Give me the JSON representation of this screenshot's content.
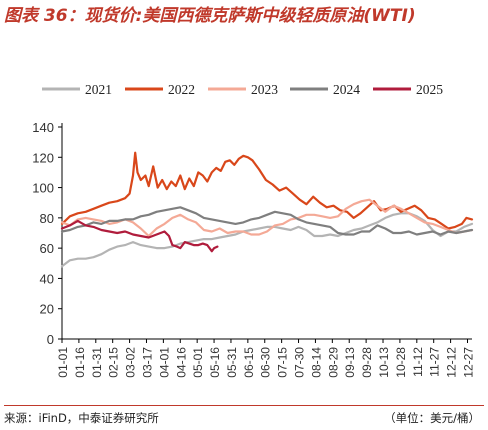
{
  "title_prefix": "图表 36：",
  "title_main": "现货价:美国西德克萨斯中级轻质原油(WTI)",
  "source": "来源：iFinD，中泰证券研究所",
  "unit": "（单位：美元/桶）",
  "chart_data": {
    "type": "line",
    "title": "",
    "xlabel": "",
    "ylabel": "",
    "ylim": [
      0,
      140
    ],
    "yticks": [
      0,
      20,
      40,
      60,
      80,
      100,
      120,
      140
    ],
    "grid": false,
    "legend_position": "top",
    "xticks": [
      "01-01",
      "01-16",
      "01-31",
      "02-15",
      "03-02",
      "03-17",
      "04-01",
      "04-16",
      "05-01",
      "05-16",
      "05-31",
      "06-15",
      "06-30",
      "07-15",
      "07-30",
      "08-14",
      "08-29",
      "09-13",
      "09-28",
      "10-13",
      "10-28",
      "11-12",
      "11-27",
      "12-12",
      "12-27"
    ],
    "x_days": [
      1,
      16,
      31,
      46,
      61,
      76,
      91,
      106,
      121,
      136,
      151,
      166,
      181,
      196,
      211,
      226,
      241,
      256,
      271,
      286,
      301,
      316,
      331,
      346,
      361
    ],
    "series": [
      {
        "name": "2021",
        "color": "#b4b4b4",
        "x": [
          1,
          8,
          15,
          22,
          29,
          36,
          43,
          50,
          57,
          64,
          71,
          78,
          85,
          92,
          99,
          106,
          113,
          120,
          127,
          134,
          141,
          148,
          155,
          162,
          169,
          176,
          183,
          190,
          197,
          204,
          211,
          218,
          225,
          232,
          239,
          246,
          253,
          260,
          267,
          274,
          281,
          288,
          295,
          302,
          309,
          316,
          323,
          330,
          337,
          344,
          351,
          358,
          365
        ],
        "values": [
          48,
          52,
          53,
          53,
          54,
          56,
          59,
          61,
          62,
          64,
          62,
          61,
          60,
          60,
          61,
          63,
          64,
          65,
          66,
          66,
          67,
          68,
          69,
          71,
          72,
          73,
          74,
          74,
          73,
          72,
          74,
          72,
          68,
          68,
          69,
          68,
          70,
          72,
          73,
          75,
          77,
          80,
          82,
          83,
          83,
          81,
          78,
          72,
          68,
          71,
          71,
          74,
          76
        ]
      },
      {
        "name": "2022",
        "color": "#d9471a",
        "x": [
          1,
          8,
          15,
          22,
          29,
          36,
          43,
          50,
          57,
          61,
          64,
          66,
          68,
          71,
          75,
          78,
          82,
          86,
          90,
          94,
          98,
          102,
          106,
          110,
          114,
          118,
          122,
          126,
          130,
          134,
          138,
          142,
          146,
          150,
          154,
          158,
          162,
          166,
          170,
          176,
          182,
          188,
          194,
          200,
          206,
          212,
          218,
          224,
          230,
          236,
          242,
          248,
          254,
          260,
          266,
          272,
          278,
          284,
          290,
          296,
          302,
          308,
          314,
          320,
          326,
          332,
          338,
          344,
          350,
          356,
          360,
          365
        ],
        "values": [
          76,
          81,
          83,
          84,
          86,
          88,
          90,
          91,
          93,
          96,
          108,
          123,
          110,
          105,
          108,
          101,
          114,
          100,
          105,
          99,
          104,
          101,
          108,
          99,
          106,
          101,
          110,
          108,
          104,
          110,
          113,
          111,
          117,
          118,
          115,
          119,
          121,
          120,
          118,
          112,
          105,
          102,
          98,
          100,
          96,
          92,
          89,
          94,
          90,
          87,
          88,
          85,
          84,
          80,
          83,
          87,
          91,
          85,
          86,
          88,
          84,
          86,
          88,
          85,
          80,
          79,
          76,
          73,
          74,
          76,
          80,
          79
        ]
      },
      {
        "name": "2023",
        "color": "#f4a996",
        "x": [
          1,
          8,
          15,
          22,
          29,
          36,
          43,
          50,
          57,
          64,
          71,
          78,
          85,
          92,
          99,
          106,
          113,
          120,
          127,
          134,
          141,
          148,
          155,
          162,
          169,
          176,
          183,
          190,
          197,
          204,
          211,
          218,
          225,
          232,
          239,
          246,
          253,
          260,
          267,
          274,
          281,
          288,
          295,
          302,
          309,
          316,
          323,
          330,
          337,
          344,
          351,
          358,
          365
        ],
        "values": [
          77,
          75,
          79,
          80,
          79,
          78,
          76,
          77,
          79,
          77,
          73,
          68,
          73,
          76,
          80,
          82,
          79,
          77,
          72,
          71,
          73,
          70,
          71,
          71,
          69,
          69,
          71,
          75,
          76,
          79,
          80,
          82,
          82,
          81,
          80,
          81,
          86,
          89,
          91,
          92,
          88,
          84,
          88,
          86,
          83,
          80,
          77,
          76,
          74,
          72,
          70,
          71,
          72
        ]
      },
      {
        "name": "2024",
        "color": "#7f7f7f",
        "x": [
          1,
          8,
          15,
          22,
          29,
          36,
          43,
          50,
          57,
          64,
          71,
          78,
          85,
          92,
          99,
          106,
          113,
          120,
          127,
          134,
          141,
          148,
          155,
          162,
          169,
          176,
          183,
          190,
          197,
          204,
          211,
          218,
          225,
          232,
          239,
          246,
          253,
          260,
          267,
          274,
          281,
          288,
          295,
          302,
          309,
          316,
          323,
          330,
          337,
          344,
          351,
          358,
          365
        ],
        "values": [
          71,
          72,
          74,
          75,
          77,
          76,
          78,
          78,
          79,
          79,
          81,
          82,
          84,
          85,
          86,
          87,
          85,
          83,
          80,
          79,
          78,
          77,
          76,
          77,
          79,
          80,
          82,
          84,
          83,
          82,
          79,
          77,
          76,
          75,
          74,
          70,
          69,
          69,
          71,
          71,
          75,
          73,
          70,
          70,
          71,
          69,
          70,
          71,
          69,
          71,
          70,
          71,
          72
        ]
      },
      {
        "name": "2025",
        "color": "#b01c3c",
        "x": [
          1,
          8,
          15,
          22,
          29,
          36,
          43,
          50,
          57,
          64,
          71,
          78,
          85,
          92,
          96,
          99,
          103,
          106,
          110,
          114,
          118,
          122,
          126,
          130,
          134,
          136,
          139
        ],
        "values": [
          73,
          75,
          78,
          75,
          74,
          72,
          71,
          70,
          71,
          69,
          68,
          67,
          69,
          71,
          68,
          62,
          61,
          60,
          64,
          63,
          62,
          62,
          63,
          62,
          58,
          60,
          61
        ]
      }
    ]
  }
}
